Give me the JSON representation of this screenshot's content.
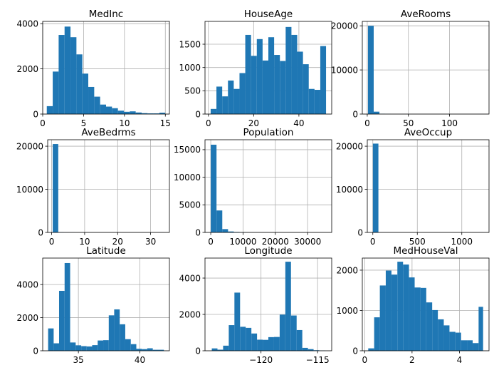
{
  "figure": {
    "background": "#ffffff"
  },
  "chart_data": [
    {
      "type": "bar",
      "title": "MedInc",
      "color": "#1f77b4",
      "grid": true,
      "xlim": [
        0,
        15.5
      ],
      "ylim": [
        0,
        4100
      ],
      "bin_edges": [
        0.5,
        1.225,
        1.95,
        2.675,
        3.4,
        4.125,
        4.85,
        5.575,
        6.3,
        7.025,
        7.75,
        8.475,
        9.2,
        9.925,
        10.65,
        11.375,
        12.1,
        12.825,
        13.55,
        14.275,
        15
      ],
      "counts": [
        350,
        1880,
        3500,
        3870,
        3400,
        2640,
        1790,
        1200,
        770,
        420,
        330,
        260,
        150,
        100,
        120,
        70,
        40,
        30,
        30,
        60
      ],
      "xticks": [
        0,
        5,
        10,
        15
      ],
      "yticks": [
        0,
        2000,
        4000
      ]
    },
    {
      "type": "bar",
      "title": "HouseAge",
      "color": "#1f77b4",
      "grid": true,
      "xlim": [
        -1.5,
        54.5
      ],
      "ylim": [
        0,
        1990
      ],
      "bin_edges": [
        1,
        3.55,
        6.1,
        8.65,
        11.2,
        13.75,
        16.3,
        18.85,
        21.4,
        23.95,
        26.5,
        29.05,
        31.6,
        34.15,
        36.7,
        39.25,
        41.8,
        44.35,
        46.9,
        49.45,
        52
      ],
      "counts": [
        110,
        590,
        380,
        720,
        540,
        880,
        1700,
        1250,
        1610,
        1150,
        1650,
        1270,
        1140,
        1870,
        1700,
        1340,
        1070,
        540,
        520,
        1460
      ],
      "xticks": [
        0,
        20,
        40
      ],
      "yticks": [
        0,
        500,
        1000,
        1500
      ]
    },
    {
      "type": "bar",
      "title": "AveRooms",
      "color": "#1f77b4",
      "grid": true,
      "xlim": [
        -6,
        148
      ],
      "ylim": [
        0,
        21000
      ],
      "bin_edges": [
        0.85,
        7.83,
        14.8,
        21.78,
        28.76,
        35.74,
        42.72,
        49.7,
        56.67,
        63.65,
        70.63,
        77.61,
        84.59,
        91.57,
        98.54,
        105.52,
        112.5,
        119.48,
        126.46,
        133.44,
        141.9
      ],
      "counts": [
        20000,
        540,
        60,
        20,
        0,
        0,
        10,
        0,
        0,
        0,
        0,
        0,
        0,
        0,
        0,
        0,
        0,
        0,
        0,
        5
      ],
      "xticks": [
        0,
        50,
        100
      ],
      "yticks": [
        0,
        10000,
        20000
      ]
    },
    {
      "type": "bar",
      "title": "AveBedrms",
      "color": "#1f77b4",
      "grid": true,
      "xlim": [
        -1.2,
        35.7
      ],
      "ylim": [
        0,
        21500
      ],
      "bin_edges": [
        0.33,
        2.0,
        3.67,
        5.34,
        7.01,
        8.68,
        10.35,
        12.02,
        13.69,
        15.36,
        17.03,
        18.7,
        20.37,
        22.04,
        23.71,
        25.38,
        27.05,
        28.72,
        30.39,
        32.06,
        34.07
      ],
      "counts": [
        20500,
        60,
        20,
        10,
        0,
        0,
        0,
        0,
        0,
        0,
        0,
        0,
        0,
        0,
        0,
        0,
        0,
        0,
        0,
        5
      ],
      "xticks": [
        0,
        10,
        20,
        30
      ],
      "yticks": [
        0,
        10000,
        20000
      ]
    },
    {
      "type": "bar",
      "title": "Population",
      "color": "#1f77b4",
      "grid": true,
      "xlim": [
        -1780,
        37460
      ],
      "ylim": [
        0,
        16800
      ],
      "bin_edges": [
        3,
        1787,
        3571,
        5355,
        7139,
        8923,
        10707,
        12491,
        14275,
        16059,
        17843,
        19627,
        21411,
        23195,
        24979,
        26763,
        28547,
        30331,
        32115,
        33899,
        35682
      ],
      "counts": [
        15900,
        3980,
        600,
        170,
        80,
        30,
        10,
        5,
        5,
        5,
        0,
        0,
        0,
        0,
        0,
        0,
        0,
        0,
        0,
        5
      ],
      "xticks": [
        0,
        10000,
        20000,
        30000
      ],
      "yticks": [
        0,
        5000,
        10000,
        15000
      ]
    },
    {
      "type": "bar",
      "title": "AveOccup",
      "color": "#1f77b4",
      "grid": true,
      "xlim": [
        -62,
        1306
      ],
      "ylim": [
        0,
        21500
      ],
      "bin_edges": [
        0.69,
        62.8,
        124.9,
        187.0,
        249.1,
        311.2,
        373.3,
        435.4,
        497.5,
        559.6,
        621.7,
        683.8,
        745.9,
        808.0,
        870.1,
        932.2,
        994.3,
        1056.4,
        1118.5,
        1180.6,
        1243.3
      ],
      "counts": [
        20600,
        5,
        5,
        0,
        0,
        0,
        0,
        0,
        0,
        0,
        0,
        0,
        0,
        0,
        0,
        0,
        0,
        0,
        0,
        5
      ],
      "xticks": [
        0,
        500,
        1000
      ],
      "yticks": [
        0,
        10000,
        20000
      ]
    },
    {
      "type": "bar",
      "title": "Latitude",
      "color": "#1f77b4",
      "grid": true,
      "xlim": [
        32.1,
        42.4
      ],
      "ylim": [
        0,
        5600
      ],
      "bin_edges": [
        32.54,
        32.99,
        33.43,
        33.88,
        34.33,
        34.78,
        35.23,
        35.67,
        36.12,
        36.57,
        37.02,
        37.47,
        37.91,
        38.36,
        38.81,
        39.26,
        39.71,
        40.15,
        40.6,
        41.05,
        41.95
      ],
      "counts": [
        1350,
        450,
        3620,
        5300,
        500,
        330,
        280,
        260,
        340,
        620,
        640,
        2140,
        2500,
        1600,
        700,
        400,
        120,
        100,
        150,
        60
      ],
      "xticks": [
        35,
        40
      ],
      "yticks": [
        0,
        2000,
        4000
      ]
    },
    {
      "type": "bar",
      "title": "Longitude",
      "color": "#1f77b4",
      "grid": true,
      "xlim": [
        -124.95,
        -113.75
      ],
      "ylim": [
        0,
        5100
      ],
      "bin_edges": [
        -124.35,
        -123.85,
        -123.35,
        -122.85,
        -122.35,
        -121.85,
        -121.35,
        -120.85,
        -120.35,
        -119.85,
        -119.35,
        -118.85,
        -118.35,
        -117.85,
        -117.35,
        -116.85,
        -116.35,
        -115.85,
        -115.35,
        -114.85,
        -114.31
      ],
      "counts": [
        130,
        60,
        280,
        1410,
        3200,
        1320,
        1260,
        950,
        610,
        600,
        750,
        760,
        1990,
        4900,
        1940,
        1140,
        160,
        90,
        30,
        10
      ],
      "xticks": [
        -120,
        -115
      ],
      "xtick_labels": [
        "−120",
        "−115"
      ],
      "yticks": [
        0,
        2000,
        4000
      ]
    },
    {
      "type": "bar",
      "title": "MedHouseVal",
      "color": "#1f77b4",
      "grid": true,
      "xlim": [
        -0.1,
        5.25
      ],
      "ylim": [
        0,
        2300
      ],
      "bin_edges": [
        0.15,
        0.4,
        0.64,
        0.89,
        1.13,
        1.38,
        1.62,
        1.87,
        2.11,
        2.36,
        2.6,
        2.85,
        3.09,
        3.34,
        3.58,
        3.83,
        4.07,
        4.32,
        4.56,
        4.81,
        5.0
      ],
      "counts": [
        60,
        830,
        1620,
        1990,
        1890,
        2210,
        2140,
        1820,
        1570,
        1560,
        1200,
        1010,
        780,
        630,
        470,
        450,
        260,
        260,
        190,
        1090
      ],
      "xticks": [
        0,
        2,
        4
      ],
      "yticks": [
        0,
        1000,
        2000
      ]
    }
  ]
}
